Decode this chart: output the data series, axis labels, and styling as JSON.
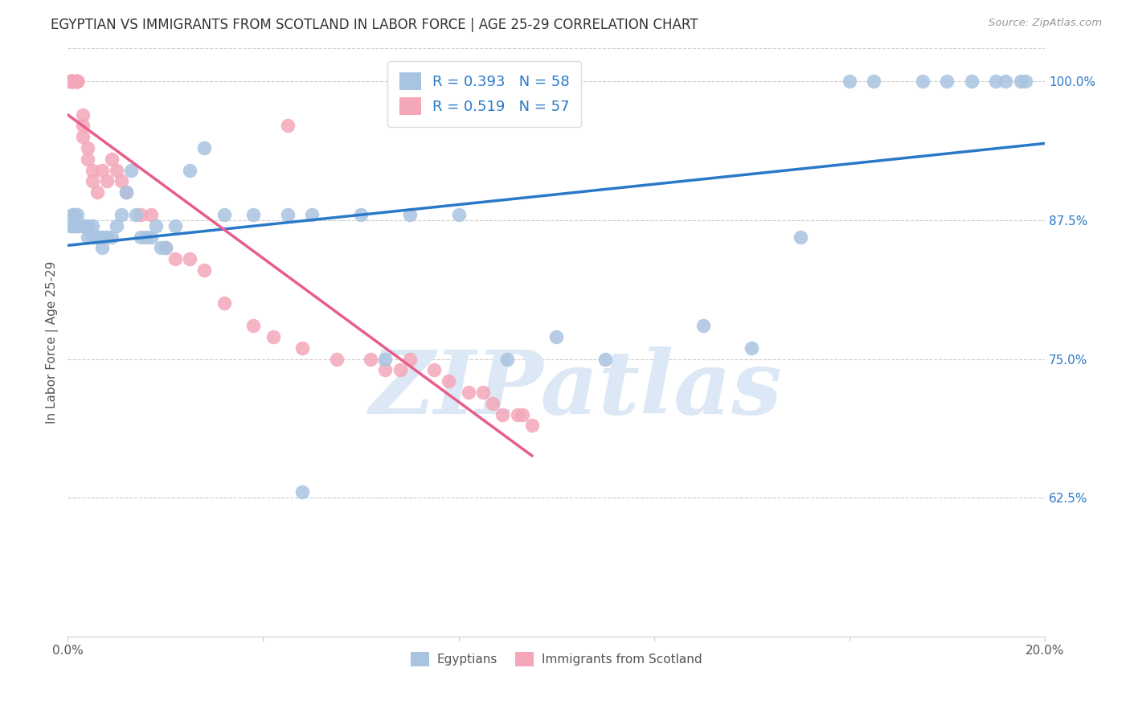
{
  "title": "EGYPTIAN VS IMMIGRANTS FROM SCOTLAND IN LABOR FORCE | AGE 25-29 CORRELATION CHART",
  "source": "Source: ZipAtlas.com",
  "ylabel": "In Labor Force | Age 25-29",
  "xlim": [
    0.0,
    0.2
  ],
  "ylim": [
    0.5,
    1.03
  ],
  "yticks": [
    0.625,
    0.75,
    0.875,
    1.0
  ],
  "ytick_labels": [
    "62.5%",
    "75.0%",
    "87.5%",
    "100.0%"
  ],
  "xticks": [
    0.0,
    0.04,
    0.08,
    0.12,
    0.16,
    0.2
  ],
  "xtick_labels": [
    "0.0%",
    "",
    "",
    "",
    "",
    "20.0%"
  ],
  "blue_R": 0.393,
  "blue_N": 58,
  "pink_R": 0.519,
  "pink_N": 57,
  "blue_color": "#a8c4e0",
  "pink_color": "#f4a7b9",
  "blue_line_color": "#2979c8",
  "pink_line_color": "#e85d8a",
  "tick_label_color": "#2979c8",
  "watermark": "ZIPatlas",
  "watermark_color": "#dce8f5",
  "background_color": "#ffffff",
  "blue_x": [
    0.0005,
    0.001,
    0.001,
    0.0015,
    0.0015,
    0.002,
    0.002,
    0.002,
    0.003,
    0.003,
    0.004,
    0.004,
    0.005,
    0.005,
    0.006,
    0.006,
    0.007,
    0.007,
    0.008,
    0.009,
    0.01,
    0.011,
    0.012,
    0.013,
    0.014,
    0.015,
    0.016,
    0.017,
    0.018,
    0.019,
    0.02,
    0.022,
    0.025,
    0.028,
    0.032,
    0.038,
    0.045,
    0.05,
    0.06,
    0.065,
    0.07,
    0.08,
    0.09,
    0.1,
    0.11,
    0.13,
    0.14,
    0.15,
    0.16,
    0.165,
    0.175,
    0.18,
    0.185,
    0.19,
    0.192,
    0.195,
    0.196,
    0.048
  ],
  "blue_y": [
    0.87,
    0.87,
    0.88,
    0.87,
    0.88,
    0.87,
    0.87,
    0.88,
    0.87,
    0.87,
    0.87,
    0.86,
    0.86,
    0.87,
    0.86,
    0.86,
    0.85,
    0.86,
    0.86,
    0.86,
    0.87,
    0.88,
    0.9,
    0.92,
    0.88,
    0.86,
    0.86,
    0.86,
    0.87,
    0.85,
    0.85,
    0.87,
    0.92,
    0.94,
    0.88,
    0.88,
    0.88,
    0.88,
    0.88,
    0.75,
    0.88,
    0.88,
    0.75,
    0.77,
    0.75,
    0.78,
    0.76,
    0.86,
    1.0,
    1.0,
    1.0,
    1.0,
    1.0,
    1.0,
    1.0,
    1.0,
    1.0,
    0.63
  ],
  "pink_x": [
    0.0005,
    0.0005,
    0.001,
    0.001,
    0.001,
    0.001,
    0.001,
    0.001,
    0.001,
    0.001,
    0.001,
    0.001,
    0.002,
    0.002,
    0.002,
    0.002,
    0.002,
    0.002,
    0.003,
    0.003,
    0.003,
    0.004,
    0.004,
    0.005,
    0.005,
    0.006,
    0.007,
    0.008,
    0.009,
    0.01,
    0.011,
    0.012,
    0.015,
    0.017,
    0.02,
    0.022,
    0.025,
    0.028,
    0.032,
    0.038,
    0.042,
    0.048,
    0.055,
    0.062,
    0.065,
    0.068,
    0.07,
    0.075,
    0.078,
    0.082,
    0.085,
    0.087,
    0.089,
    0.092,
    0.093,
    0.095,
    0.045
  ],
  "pink_y": [
    1.0,
    1.0,
    1.0,
    1.0,
    1.0,
    1.0,
    1.0,
    1.0,
    1.0,
    1.0,
    1.0,
    1.0,
    1.0,
    1.0,
    1.0,
    1.0,
    1.0,
    1.0,
    0.97,
    0.95,
    0.96,
    0.94,
    0.93,
    0.92,
    0.91,
    0.9,
    0.92,
    0.91,
    0.93,
    0.92,
    0.91,
    0.9,
    0.88,
    0.88,
    0.85,
    0.84,
    0.84,
    0.83,
    0.8,
    0.78,
    0.77,
    0.76,
    0.75,
    0.75,
    0.74,
    0.74,
    0.75,
    0.74,
    0.73,
    0.72,
    0.72,
    0.71,
    0.7,
    0.7,
    0.7,
    0.69,
    0.96
  ]
}
